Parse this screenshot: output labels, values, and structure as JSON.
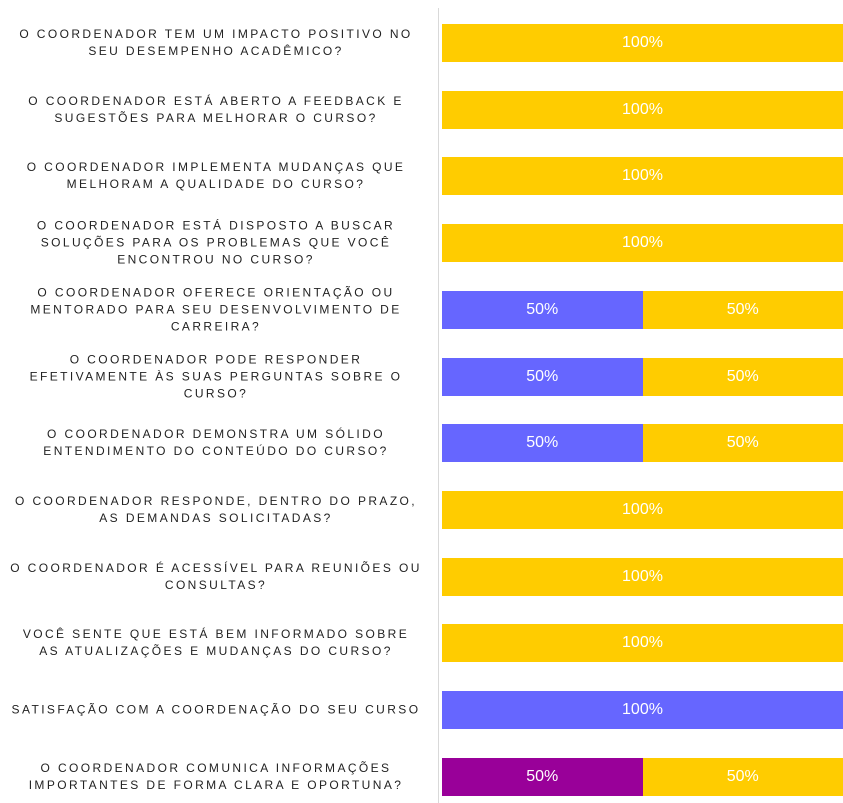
{
  "chart_data": {
    "type": "stacked_barh",
    "categories": [
      "O COORDENADOR TEM UM IMPACTO POSITIVO NO SEU DESEMPENHO ACADÊMICO?",
      "O COORDENADOR ESTÁ ABERTO A FEEDBACK E SUGESTÕES PARA MELHORAR O CURSO?",
      "O COORDENADOR IMPLEMENTA MUDANÇAS QUE MELHORAM A QUALIDADE DO CURSO?",
      "O COORDENADOR ESTÁ DISPOSTO A BUSCAR SOLUÇÕES PARA OS PROBLEMAS QUE VOCÊ ENCONTROU NO CURSO?",
      "O COORDENADOR OFERECE ORIENTAÇÃO OU MENTORADO PARA SEU DESENVOLVIMENTO DE CARREIRA?",
      "O COORDENADOR PODE RESPONDER EFETIVAMENTE ÀS SUAS PERGUNTAS SOBRE O CURSO?",
      "O COORDENADOR DEMONSTRA UM SÓLIDO ENTENDIMENTO DO CONTEÚDO DO CURSO?",
      "O COORDENADOR RESPONDE, DENTRO DO PRAZO, AS DEMANDAS SOLICITADAS?",
      "O COORDENADOR É ACESSÍVEL PARA REUNIÕES OU CONSULTAS?",
      "VOCÊ SENTE QUE ESTÁ BEM INFORMADO SOBRE AS ATUALIZAÇÕES E MUDANÇAS DO CURSO?",
      "SATISFAÇÃO COM A COORDENAÇÃO DO SEU CURSO",
      "O COORDENADOR COMUNICA INFORMAÇÕES IMPORTANTES DE FORMA CLARA E OPORTUNA?"
    ],
    "series": [
      {
        "color": "#990099",
        "values": [
          null,
          null,
          null,
          null,
          null,
          null,
          null,
          null,
          null,
          null,
          null,
          50
        ],
        "value_labels": [
          null,
          null,
          null,
          null,
          null,
          null,
          null,
          null,
          null,
          null,
          null,
          "50%"
        ]
      },
      {
        "color": "#6666ff",
        "values": [
          null,
          null,
          null,
          null,
          50,
          50,
          50,
          null,
          null,
          null,
          100,
          null
        ],
        "value_labels": [
          null,
          null,
          null,
          null,
          "50%",
          "50%",
          "50%",
          null,
          null,
          null,
          "100%",
          null
        ]
      },
      {
        "color": "#ffcc00",
        "values": [
          100,
          100,
          100,
          100,
          50,
          50,
          50,
          100,
          100,
          100,
          null,
          50
        ],
        "value_labels": [
          "100%",
          "100%",
          "100%",
          "100%",
          "50%",
          "50%",
          "50%",
          "100%",
          "100%",
          "100%",
          null,
          "50%"
        ]
      }
    ],
    "xlim": [
      0,
      100
    ]
  }
}
